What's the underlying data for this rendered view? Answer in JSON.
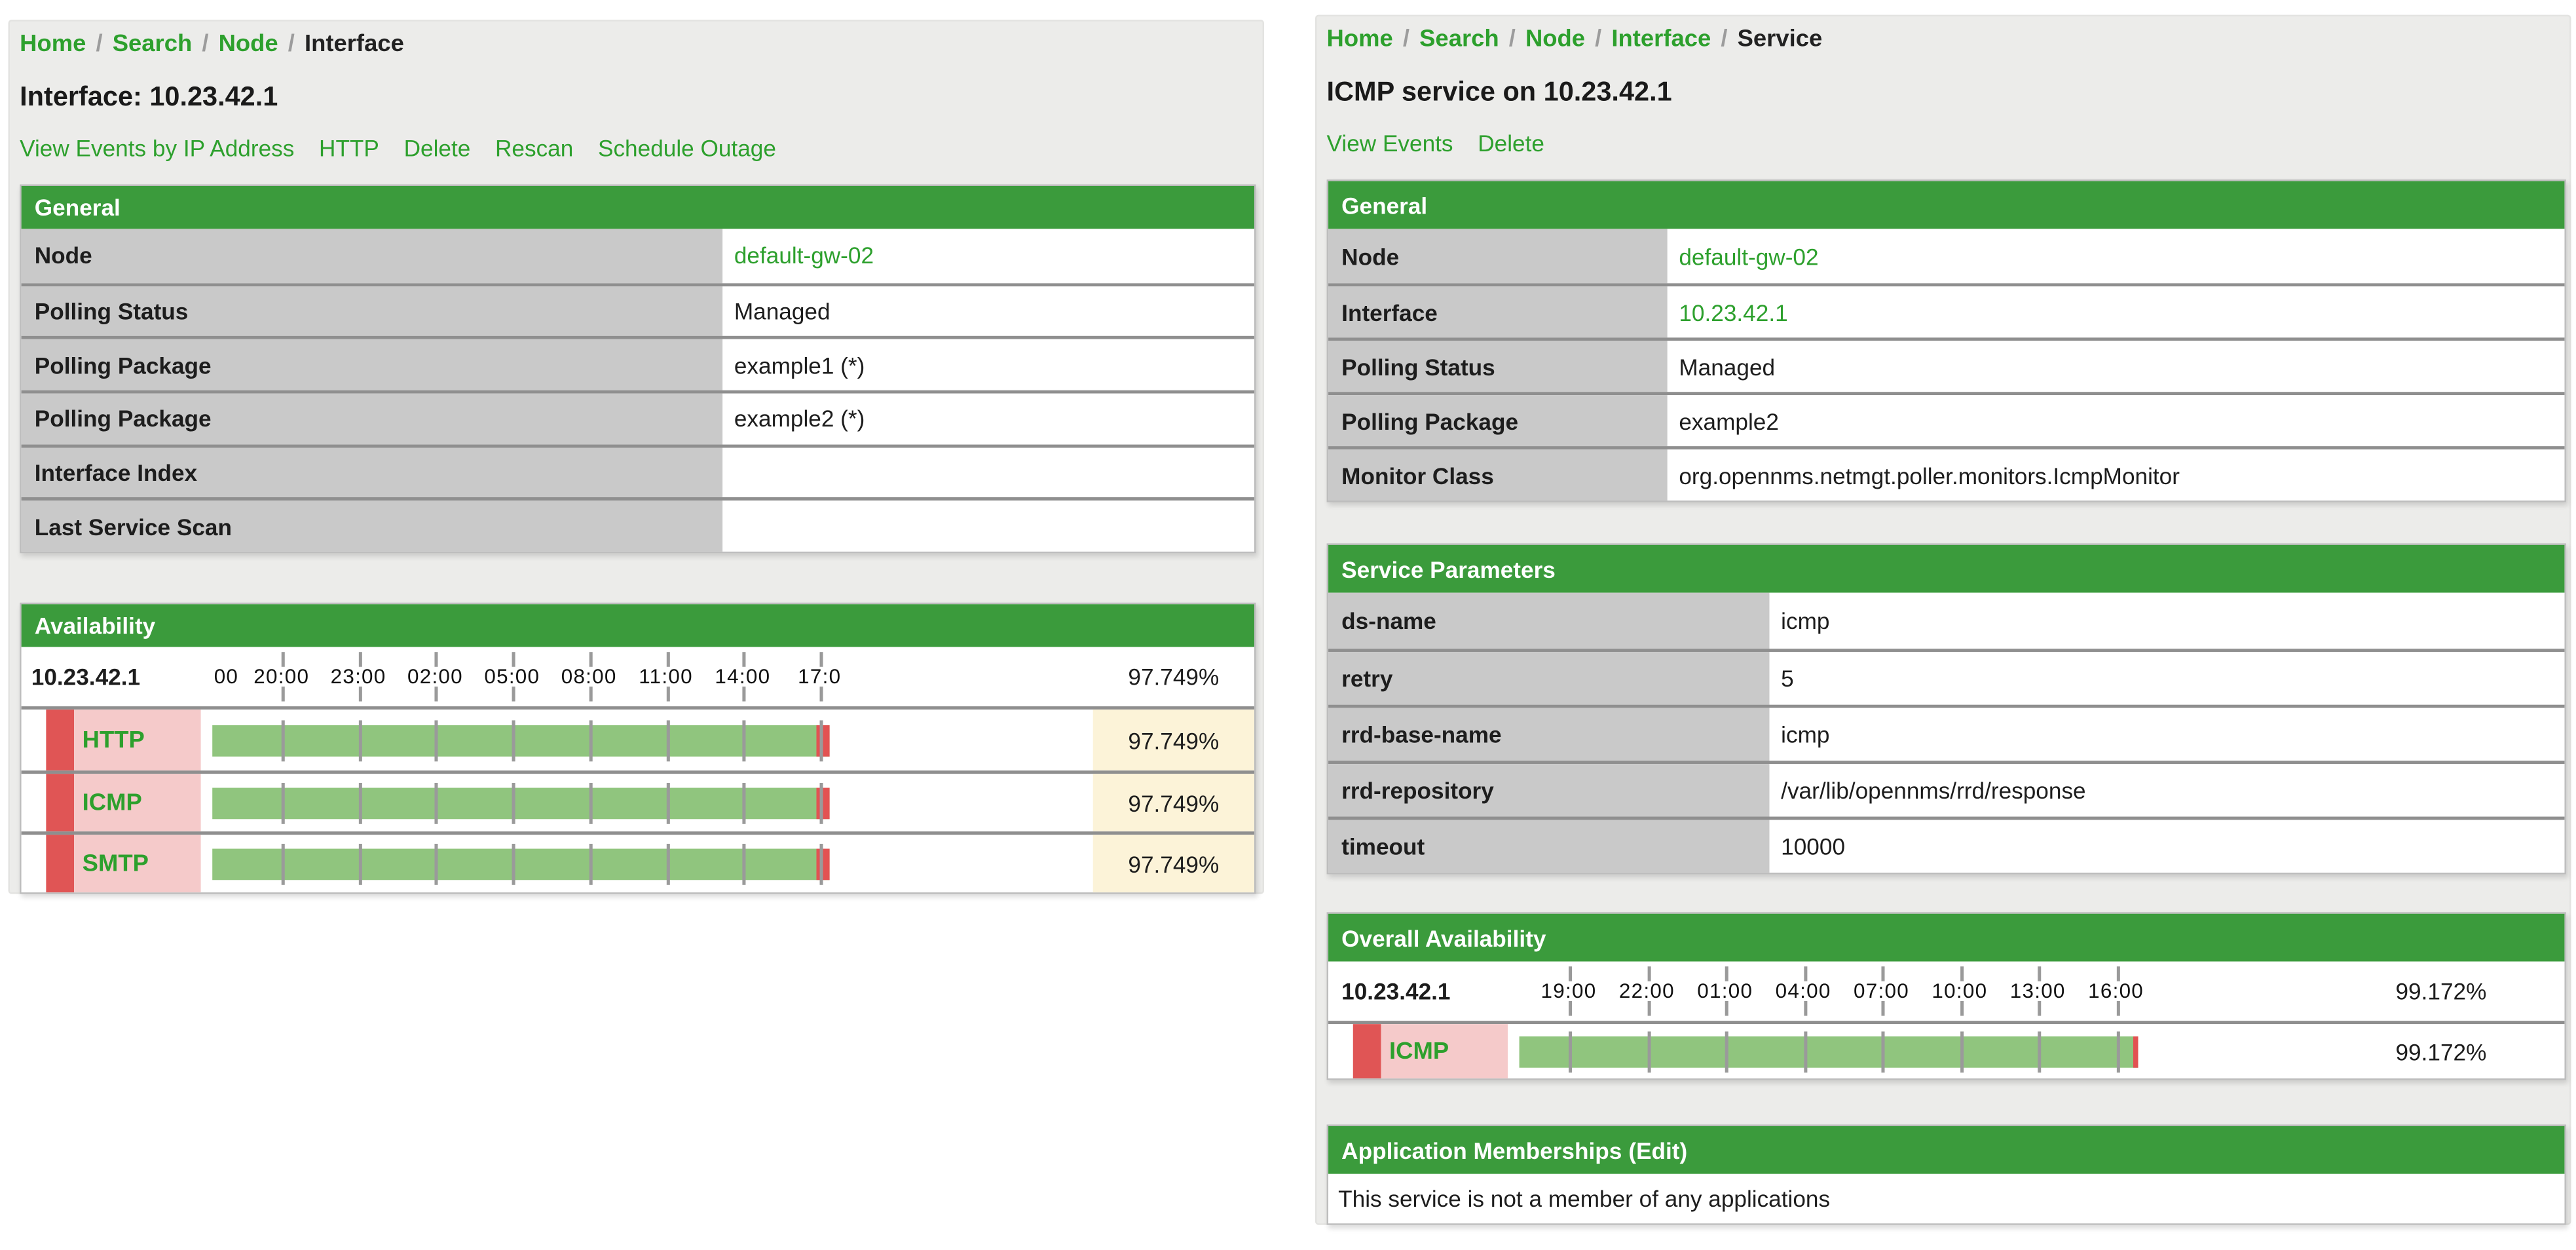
{
  "colors": {
    "header_green": "#3b9b3c",
    "link_green": "#2da02d",
    "bar_green": "#90c57e",
    "bar_red": "#e25252",
    "flag_red": "#e05555",
    "label_pink": "#f5caca",
    "highlight_yellow": "#fcf3d8"
  },
  "left_panel": {
    "breadcrumbs": [
      "Home",
      "Search",
      "Node",
      "Interface"
    ],
    "title": "Interface: 10.23.42.1",
    "actions": [
      "View Events by IP Address",
      "HTTP",
      "Delete",
      "Rescan",
      "Schedule Outage"
    ],
    "general": {
      "header": "General",
      "rows": [
        {
          "label": "Node",
          "value": "default-gw-02",
          "link": true
        },
        {
          "label": "Polling Status",
          "value": "Managed"
        },
        {
          "label": "Polling Package",
          "value": "example1 (*)"
        },
        {
          "label": "Polling Package",
          "value": "example2 (*)"
        },
        {
          "label": "Interface Index",
          "value": ""
        },
        {
          "label": "Last Service Scan",
          "value": ""
        }
      ]
    },
    "availability": {
      "header": "Availability",
      "ip": "10.23.42.1",
      "overall": "97.749%",
      "ticks": [
        "00",
        "20:00",
        "23:00",
        "02:00",
        "05:00",
        "08:00",
        "11:00",
        "14:00",
        "17:0"
      ],
      "services": [
        {
          "name": "HTTP",
          "pct": 97.749,
          "value": "97.749%"
        },
        {
          "name": "ICMP",
          "pct": 97.749,
          "value": "97.749%"
        },
        {
          "name": "SMTP",
          "pct": 97.749,
          "value": "97.749%"
        }
      ]
    }
  },
  "right_panel": {
    "breadcrumbs": [
      "Home",
      "Search",
      "Node",
      "Interface",
      "Service"
    ],
    "title": "ICMP service on 10.23.42.1",
    "actions": [
      "View Events",
      "Delete"
    ],
    "general": {
      "header": "General",
      "rows": [
        {
          "label": "Node",
          "value": "default-gw-02",
          "link": true
        },
        {
          "label": "Interface",
          "value": "10.23.42.1",
          "link": true
        },
        {
          "label": "Polling Status",
          "value": "Managed"
        },
        {
          "label": "Polling Package",
          "value": "example2"
        },
        {
          "label": "Monitor Class",
          "value": "org.opennms.netmgt.poller.monitors.IcmpMonitor"
        }
      ]
    },
    "service_parameters": {
      "header": "Service Parameters",
      "rows": [
        {
          "label": "ds-name",
          "value": "icmp"
        },
        {
          "label": "retry",
          "value": "5"
        },
        {
          "label": "rrd-base-name",
          "value": "icmp"
        },
        {
          "label": "rrd-repository",
          "value": "/var/lib/opennms/rrd/response"
        },
        {
          "label": "timeout",
          "value": "10000"
        }
      ]
    },
    "overall_availability": {
      "header": "Overall Availability",
      "ip": "10.23.42.1",
      "overall": "99.172%",
      "ticks": [
        "19:00",
        "22:00",
        "01:00",
        "04:00",
        "07:00",
        "10:00",
        "13:00",
        "16:00"
      ],
      "services": [
        {
          "name": "ICMP",
          "pct": 99.172,
          "value": "99.172%"
        }
      ]
    },
    "application_memberships": {
      "header": "Application Memberships",
      "edit_label": "(Edit)",
      "empty_message": "This service is not a member of any applications"
    }
  }
}
